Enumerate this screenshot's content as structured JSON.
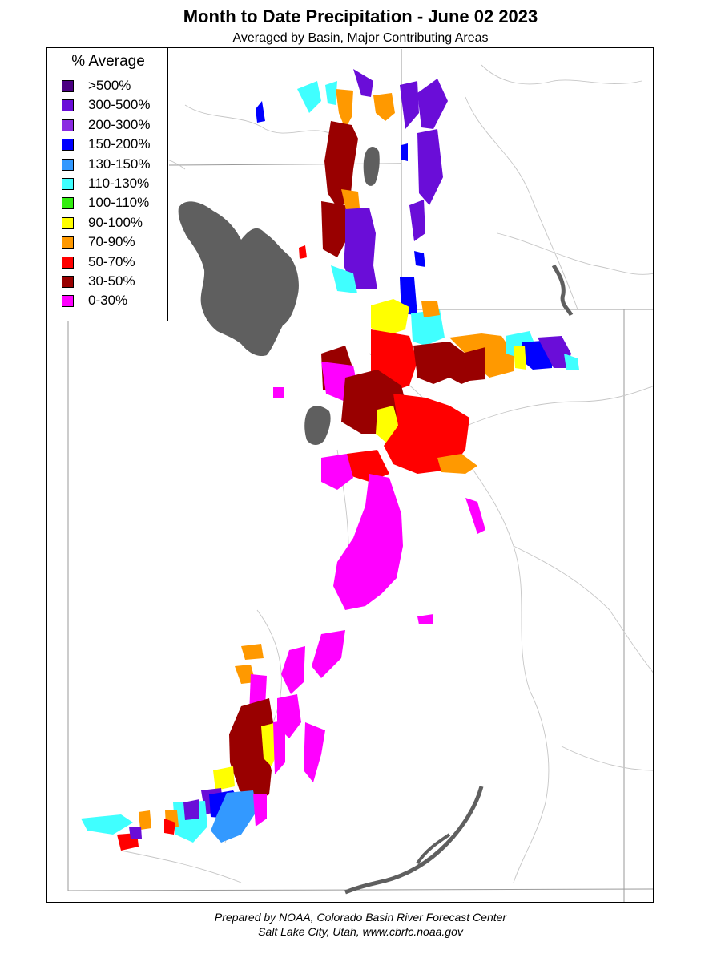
{
  "title": "Month to Date Precipitation - June 02 2023",
  "subtitle": "Averaged by Basin, Major Contributing Areas",
  "legend": {
    "title": "% Average",
    "items": [
      {
        "label": ">500%",
        "color": "#4b0082"
      },
      {
        "label": "300-500%",
        "color": "#6a0dd8"
      },
      {
        "label": "200-300%",
        "color": "#8a2be2"
      },
      {
        "label": "150-200%",
        "color": "#0000ff"
      },
      {
        "label": "130-150%",
        "color": "#3399ff"
      },
      {
        "label": "110-130%",
        "color": "#40ffff"
      },
      {
        "label": "100-110%",
        "color": "#33ee11"
      },
      {
        "label": "90-100%",
        "color": "#ffff00"
      },
      {
        "label": "70-90%",
        "color": "#ff9900"
      },
      {
        "label": "50-70%",
        "color": "#ff0000"
      },
      {
        "label": "30-50%",
        "color": "#990000"
      },
      {
        "label": "0-30%",
        "color": "#ff00ff"
      }
    ]
  },
  "lake_color": "#5f5f5f",
  "footer": {
    "line1": "Prepared by NOAA, Colorado Basin River Forecast Center",
    "line2": "Salt Lake City, Utah, www.cbrfc.noaa.gov"
  }
}
